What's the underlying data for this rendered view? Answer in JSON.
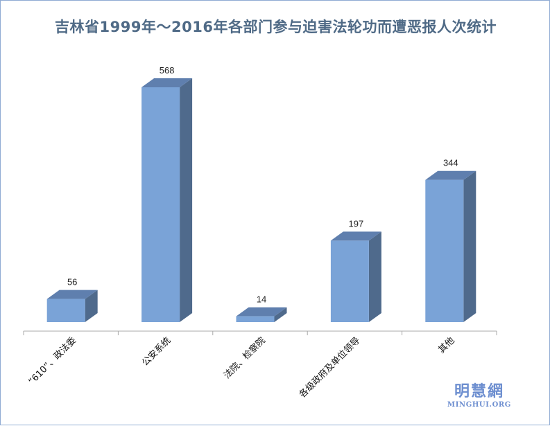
{
  "chart_data": {
    "type": "bar",
    "title": "吉林省1999年～2016年各部门参与迫害法轮功而遭恶报人次统计",
    "categories": [
      "“610”、政法委",
      "公安系统",
      "法院、检察院",
      "各级政府及单位领导",
      "其他"
    ],
    "values": [
      56,
      568,
      14,
      197,
      344
    ],
    "ylim": [
      0,
      568
    ],
    "grid": false,
    "legend": "none",
    "colors": {
      "front": "#7aa3d7",
      "side": "#4f6a8c",
      "top": "#5f7fae"
    }
  },
  "watermark": {
    "cn": "明慧網",
    "en": "MINGHUI.ORG"
  }
}
